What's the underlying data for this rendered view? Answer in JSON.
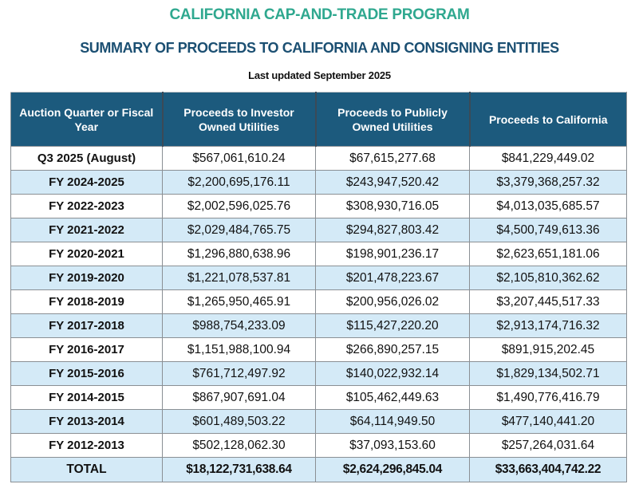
{
  "header": {
    "program_title": "CALIFORNIA CAP-AND-TRADE PROGRAM",
    "summary_title": "SUMMARY OF PROCEEDS TO CALIFORNIA AND CONSIGNING ENTITIES",
    "last_updated": "Last updated September 2025"
  },
  "colors": {
    "program_title": "#2fa88f",
    "summary_title": "#1b4f72",
    "table_header_bg": "#1c5a7d",
    "row_alt_bg": "#d4eaf7"
  },
  "table": {
    "columns": [
      "Auction Quarter or Fiscal Year",
      "Proceeds to Investor Owned Utilities",
      "Proceeds to Publicly Owned Utilities",
      "Proceeds to California"
    ],
    "rows": [
      {
        "period": "Q3 2025 (August)",
        "iou": "$567,061,610.24",
        "pou": "$67,615,277.68",
        "california": "$841,229,449.02"
      },
      {
        "period": "FY 2024-2025",
        "iou": "$2,200,695,176.11",
        "pou": "$243,947,520.42",
        "california": "$3,379,368,257.32"
      },
      {
        "period": "FY 2022-2023",
        "iou": "$2,002,596,025.76",
        "pou": "$308,930,716.05",
        "california": "$4,013,035,685.57"
      },
      {
        "period": "FY 2021-2022",
        "iou": "$2,029,484,765.75",
        "pou": "$294,827,803.42",
        "california": "$4,500,749,613.36"
      },
      {
        "period": "FY 2020-2021",
        "iou": "$1,296,880,638.96",
        "pou": "$198,901,236.17",
        "california": "$2,623,651,181.06"
      },
      {
        "period": "FY 2019-2020",
        "iou": "$1,221,078,537.81",
        "pou": "$201,478,223.67",
        "california": "$2,105,810,362.62"
      },
      {
        "period": "FY 2018-2019",
        "iou": "$1,265,950,465.91",
        "pou": "$200,956,026.02",
        "california": "$3,207,445,517.33"
      },
      {
        "period": "FY 2017-2018",
        "iou": "$988,754,233.09",
        "pou": "$115,427,220.20",
        "california": "$2,913,174,716.32"
      },
      {
        "period": "FY 2016-2017",
        "iou": "$1,151,988,100.94",
        "pou": "$266,890,257.15",
        "california": "$891,915,202.45"
      },
      {
        "period": "FY 2015-2016",
        "iou": "$761,712,497.92",
        "pou": "$140,022,932.14",
        "california": "$1,829,134,502.71"
      },
      {
        "period": "FY 2014-2015",
        "iou": "$867,907,691.04",
        "pou": "$105,462,449.63",
        "california": "$1,490,776,416.79"
      },
      {
        "period": "FY 2013-2014",
        "iou": "$601,489,503.22",
        "pou": "$64,114,949.50",
        "california": "$477,140,441.20"
      },
      {
        "period": "FY 2012-2013",
        "iou": "$502,128,062.30",
        "pou": "$37,093,153.60",
        "california": "$257,264,031.64"
      }
    ],
    "total": {
      "label": "TOTAL",
      "iou": "$18,122,731,638.64",
      "pou": "$2,624,296,845.04",
      "california": "$33,663,404,742.22"
    }
  }
}
